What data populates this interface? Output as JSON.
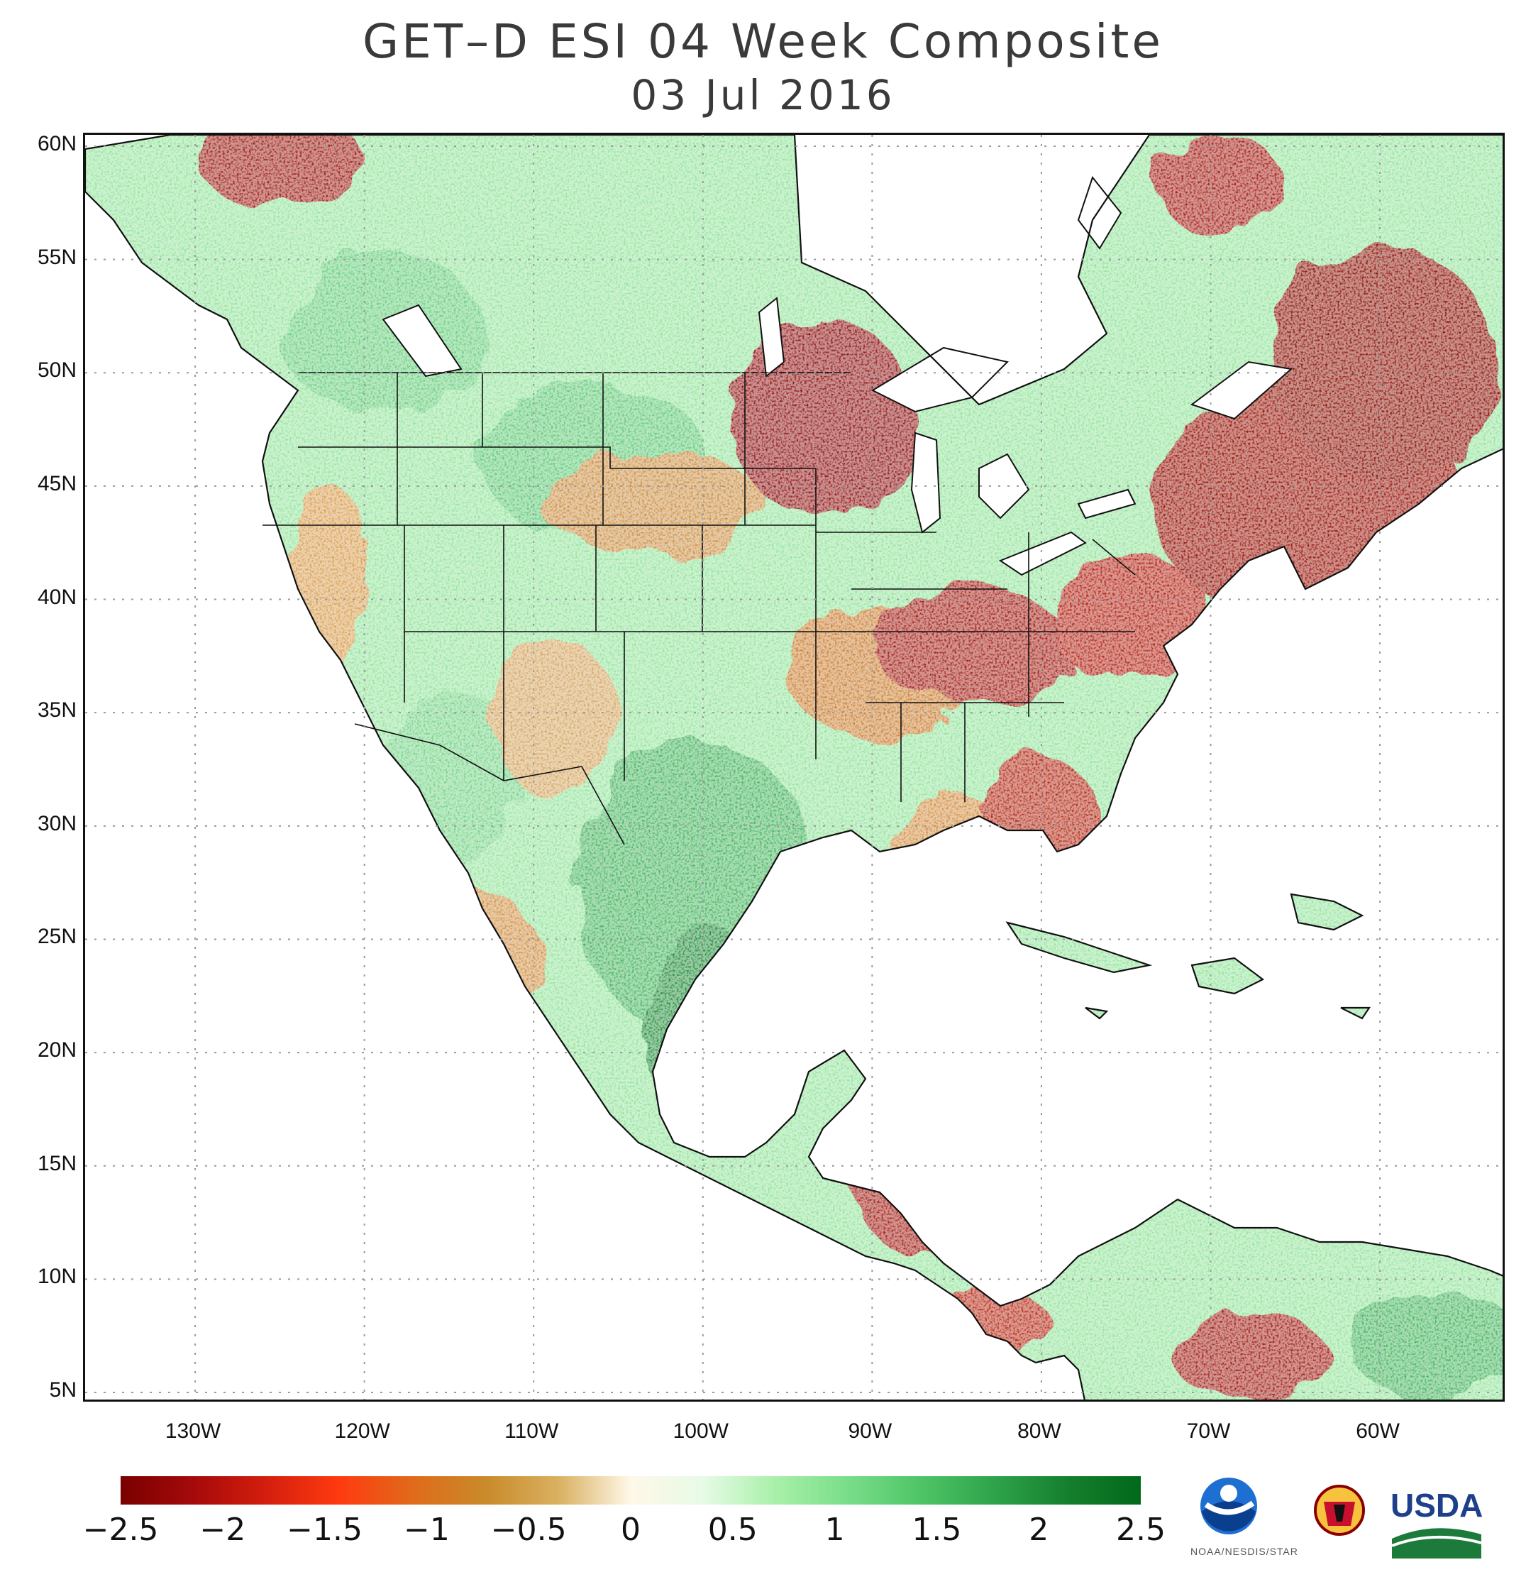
{
  "title": "GET–D  ESI  04  Week  Composite",
  "subtitle": "03  Jul  2016",
  "axes": {
    "lat_labels": [
      "60N",
      "55N",
      "50N",
      "45N",
      "40N",
      "35N",
      "30N",
      "25N",
      "20N",
      "15N",
      "10N",
      "5N"
    ],
    "lat_values": [
      60,
      55,
      50,
      45,
      40,
      35,
      30,
      25,
      20,
      15,
      10,
      5
    ],
    "lon_labels": [
      "130W",
      "120W",
      "110W",
      "100W",
      "90W",
      "80W",
      "70W",
      "60W"
    ],
    "lon_values": [
      -130,
      -120,
      -110,
      -100,
      -90,
      -80,
      -70,
      -60
    ],
    "lat_range": [
      4.5,
      60.5
    ],
    "lon_range": [
      -136.5,
      -52.5
    ]
  },
  "colorbar": {
    "labels": [
      "−2.5",
      "−2",
      "−1.5",
      "−1",
      "−0.5",
      "0",
      "0.5",
      "1",
      "1.5",
      "2",
      "2.5"
    ],
    "values": [
      -2.5,
      -2,
      -1.5,
      -1,
      -0.5,
      0,
      0.5,
      1,
      1.5,
      2,
      2.5
    ],
    "colors": [
      "#7a0000",
      "#a50a0a",
      "#d41e0e",
      "#ff3a10",
      "#e06a1a",
      "#c98a2a",
      "#d9b060",
      "#fff8e8",
      "#e6fbe6",
      "#a8f0a8",
      "#78dd88",
      "#4ec466",
      "#2ea34a",
      "#157f2e",
      "#006a1a"
    ]
  },
  "logos": {
    "noaa_caption": "NOAA/NESDIS/STAR",
    "usda_label": "USDA"
  },
  "palette": {
    "dry_dark": "#8b0000",
    "dry_mid": "#c0501a",
    "neutral": "#f3f3e0",
    "wet_light": "#98eaa0",
    "wet_dark": "#1f8a36",
    "water": "#ffffff"
  }
}
